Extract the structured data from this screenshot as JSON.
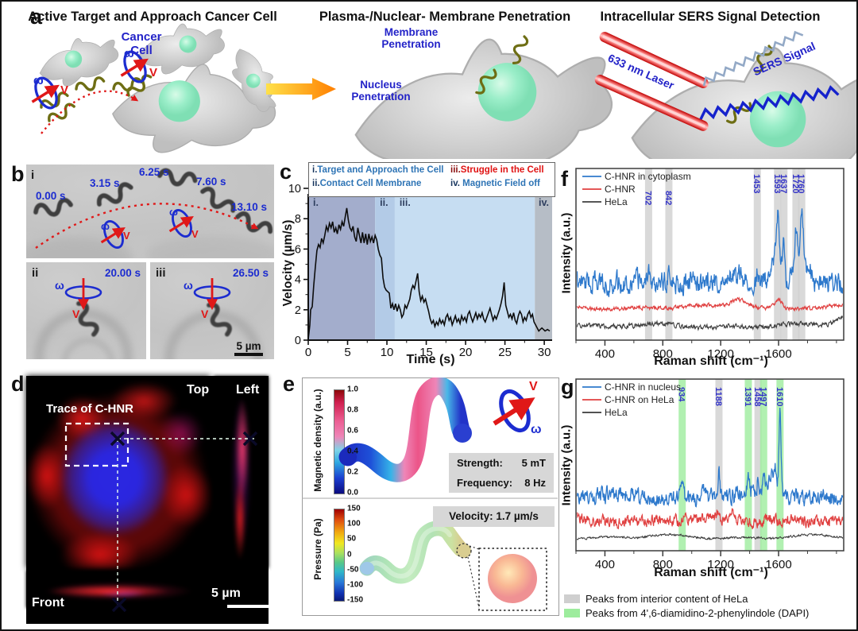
{
  "colors": {
    "accent_blue_text": "#2323c8",
    "curve_blue": "#2e79cc",
    "curve_red": "#e04040",
    "curve_black": "#3f3f3f",
    "band_gray": "#cfcfcf",
    "band_green": "#9dec9d",
    "legend_blue": "#2e74b5",
    "legend_red": "#e01212"
  },
  "panel_a": {
    "label": "a",
    "sections": [
      {
        "title": "Active Target and Approach Cancer Cell"
      },
      {
        "title": "Plasma-/Nuclear- Membrane Penetration"
      },
      {
        "title": "Intracellular SERS Signal Detection"
      }
    ],
    "labels": {
      "cancer_cell": "Cancer Cell",
      "membrane_penetration": "Membrane Penetration",
      "nucleus_penetration": "Nucleus Penetration",
      "laser": "633 nm Laser",
      "sers_signal": "SERS Signal",
      "omega": "ω",
      "v": "V"
    }
  },
  "panel_b": {
    "label": "b",
    "i": {
      "label": "i",
      "timestamps": [
        "0.00 s",
        "3.15 s",
        "6.25 s",
        "7.60 s",
        "13.10 s"
      ]
    },
    "ii": {
      "label": "ii",
      "timestamp": "20.00 s"
    },
    "iii": {
      "label": "iii",
      "timestamp": "26.50 s"
    },
    "scale_bar": "5 µm",
    "omega": "ω",
    "v": "V"
  },
  "panel_c": {
    "label": "c"
  },
  "panel_d": {
    "label": "d",
    "view_top": "Top",
    "view_left": "Left",
    "view_front": "Front",
    "trace": "Trace of C-HNR",
    "scale_bar": "5 µm"
  },
  "panel_e": {
    "label": "e",
    "top": {
      "colorbar_title": "Magnetic density (a.u.)",
      "cbar_ticks": [
        "1.0",
        "0.8",
        "0.6",
        "0.4",
        "0.2",
        "0.0"
      ],
      "omega": "ω",
      "v": "V"
    },
    "params": [
      {
        "k": "Strength:",
        "v": "5 mT"
      },
      {
        "k": "Frequency:",
        "v": "8 Hz"
      }
    ],
    "bottom": {
      "colorbar_title": "Pressure (Pa)",
      "cbar_ticks": [
        "150",
        "100",
        "50",
        "0",
        "-50",
        "-100",
        "-150"
      ],
      "velocity_label": "Velocity: 1.7 µm/s"
    }
  },
  "panel_f": {
    "label": "f"
  },
  "panel_g": {
    "label": "g",
    "bottom_legend": [
      {
        "color": "#cfcfcf",
        "text": "Peaks from interior content of HeLa"
      },
      {
        "color": "#9dec9d",
        "text": "Peaks from 4',6-diamidino-2-phenylindole (DAPI)"
      }
    ]
  },
  "chart_data": [
    {
      "id": "velocity",
      "type": "line",
      "title": "",
      "xlabel": "Time (s)",
      "ylabel": "Velocity (µm/s)",
      "x_ticks": [
        0,
        5,
        10,
        15,
        20,
        25,
        30
      ],
      "y_ticks": [
        0,
        2,
        4,
        6,
        8,
        10
      ],
      "x_range": [
        0,
        31
      ],
      "y_range": [
        0,
        10
      ],
      "regions": [
        {
          "label": "i.",
          "start": 0,
          "end": 8.5,
          "color": "#a3adcc"
        },
        {
          "label": "ii.",
          "start": 8.5,
          "end": 11.0,
          "color": "#b3cbe7"
        },
        {
          "label": "iii.",
          "start": 11.0,
          "end": 28.8,
          "color": "#c6ddf2"
        },
        {
          "label": "iv.",
          "start": 28.8,
          "end": 31.0,
          "color": "#b6bdc6"
        }
      ],
      "legend": [
        {
          "prefix": "i.",
          "text": "Target and Approach the Cell",
          "prefix_color": "#17355e",
          "color": "#2e74b5"
        },
        {
          "prefix": "ii.",
          "text": "Contact Cell Membrane",
          "prefix_color": "#17355e",
          "color": "#2e74b5"
        },
        {
          "prefix": "iii.",
          "text": "Struggle in the Cell",
          "prefix_color": "#8a0f0f",
          "color": "#e01212"
        },
        {
          "prefix": "iv.",
          "text": " Magnetic Field off",
          "prefix_color": "#17355e",
          "color": "#2e74b5"
        }
      ],
      "points": [
        [
          0,
          0.05
        ],
        [
          0.2,
          1.0
        ],
        [
          0.3,
          2.0
        ],
        [
          0.5,
          2.2
        ],
        [
          0.7,
          3.6
        ],
        [
          0.9,
          4.8
        ],
        [
          1.1,
          5.9
        ],
        [
          1.3,
          6.3
        ],
        [
          1.5,
          6.1
        ],
        [
          1.7,
          6.7
        ],
        [
          1.9,
          6.4
        ],
        [
          2.1,
          6.9
        ],
        [
          2.3,
          7.5
        ],
        [
          2.5,
          7.2
        ],
        [
          2.7,
          7.7
        ],
        [
          2.9,
          7.4
        ],
        [
          3.1,
          7.8
        ],
        [
          3.3,
          7.1
        ],
        [
          3.5,
          7.4
        ],
        [
          3.7,
          7.0
        ],
        [
          3.9,
          7.6
        ],
        [
          4.1,
          7.3
        ],
        [
          4.3,
          7.8
        ],
        [
          4.5,
          7.5
        ],
        [
          4.7,
          8.1
        ],
        [
          4.9,
          8.7
        ],
        [
          5.1,
          7.9
        ],
        [
          5.3,
          7.4
        ],
        [
          5.5,
          7.2
        ],
        [
          5.7,
          7.5
        ],
        [
          5.9,
          6.8
        ],
        [
          6.1,
          6.5
        ],
        [
          6.3,
          7.4
        ],
        [
          6.5,
          6.9
        ],
        [
          6.7,
          6.4
        ],
        [
          6.9,
          7.1
        ],
        [
          7.1,
          6.4
        ],
        [
          7.3,
          7.0
        ],
        [
          7.5,
          6.3
        ],
        [
          7.7,
          7.0
        ],
        [
          7.9,
          6.5
        ],
        [
          8.1,
          6.8
        ],
        [
          8.3,
          6.4
        ],
        [
          8.5,
          6.9
        ],
        [
          8.7,
          6.6
        ],
        [
          8.9,
          6.0
        ],
        [
          9.1,
          5.6
        ],
        [
          9.3,
          5.4
        ],
        [
          9.5,
          4.1
        ],
        [
          9.7,
          3.5
        ],
        [
          9.9,
          3.3
        ],
        [
          10.1,
          3.2
        ],
        [
          10.3,
          3.1
        ],
        [
          10.5,
          2.1
        ],
        [
          10.7,
          2.4
        ],
        [
          10.9,
          2.0
        ],
        [
          11.1,
          2.4
        ],
        [
          11.3,
          1.9
        ],
        [
          11.5,
          2.3
        ],
        [
          11.7,
          2.0
        ],
        [
          11.9,
          1.5
        ],
        [
          12.1,
          1.7
        ],
        [
          12.3,
          2.3
        ],
        [
          12.5,
          2.1
        ],
        [
          12.7,
          2.4
        ],
        [
          12.9,
          2.7
        ],
        [
          13.1,
          3.3
        ],
        [
          13.3,
          3.6
        ],
        [
          13.5,
          3.4
        ],
        [
          13.7,
          3.9
        ],
        [
          13.9,
          4.4
        ],
        [
          14.1,
          3.2
        ],
        [
          14.3,
          2.6
        ],
        [
          14.5,
          2.9
        ],
        [
          14.7,
          2.5
        ],
        [
          14.9,
          2.7
        ],
        [
          15.1,
          2.3
        ],
        [
          15.3,
          1.9
        ],
        [
          15.5,
          1.4
        ],
        [
          15.7,
          1.1
        ],
        [
          15.9,
          1.3
        ],
        [
          16.1,
          0.9
        ],
        [
          16.3,
          1.2
        ],
        [
          16.5,
          1.0
        ],
        [
          16.7,
          1.4
        ],
        [
          16.9,
          1.1
        ],
        [
          17.1,
          1.3
        ],
        [
          17.3,
          1.0
        ],
        [
          17.5,
          1.5
        ],
        [
          17.7,
          1.7
        ],
        [
          17.9,
          1.3
        ],
        [
          18.1,
          1.5
        ],
        [
          18.3,
          1.0
        ],
        [
          18.5,
          1.3
        ],
        [
          18.7,
          1.6
        ],
        [
          18.9,
          1.2
        ],
        [
          19.1,
          1.4
        ],
        [
          19.3,
          1.1
        ],
        [
          19.5,
          1.6
        ],
        [
          19.7,
          1.3
        ],
        [
          19.9,
          1.5
        ],
        [
          20.1,
          1.2
        ],
        [
          20.3,
          1.7
        ],
        [
          20.5,
          1.9
        ],
        [
          20.7,
          1.5
        ],
        [
          20.9,
          1.2
        ],
        [
          21.1,
          1.5
        ],
        [
          21.3,
          1.8
        ],
        [
          21.5,
          1.4
        ],
        [
          21.7,
          1.7
        ],
        [
          21.9,
          1.5
        ],
        [
          22.1,
          1.8
        ],
        [
          22.3,
          1.4
        ],
        [
          22.5,
          1.2
        ],
        [
          22.7,
          1.5
        ],
        [
          22.9,
          1.8
        ],
        [
          23.1,
          2.1
        ],
        [
          23.3,
          1.7
        ],
        [
          23.5,
          1.3
        ],
        [
          23.7,
          1.6
        ],
        [
          23.9,
          1.4
        ],
        [
          24.1,
          1.7
        ],
        [
          24.3,
          2.0
        ],
        [
          24.5,
          2.4
        ],
        [
          24.7,
          2.9
        ],
        [
          24.9,
          3.8
        ],
        [
          25.1,
          2.3
        ],
        [
          25.3,
          1.9
        ],
        [
          25.5,
          1.5
        ],
        [
          25.7,
          1.7
        ],
        [
          25.9,
          1.4
        ],
        [
          26.1,
          1.8
        ],
        [
          26.3,
          1.3
        ],
        [
          26.5,
          1.1
        ],
        [
          26.7,
          1.6
        ],
        [
          26.9,
          1.9
        ],
        [
          27.1,
          1.7
        ],
        [
          27.3,
          1.2
        ],
        [
          27.5,
          1.5
        ],
        [
          27.7,
          1.3
        ],
        [
          27.9,
          1.7
        ],
        [
          28.1,
          1.9
        ],
        [
          28.3,
          1.5
        ],
        [
          28.5,
          1.7
        ],
        [
          28.7,
          1.2
        ],
        [
          28.9,
          1.0
        ],
        [
          29.1,
          0.8
        ],
        [
          29.3,
          0.6
        ],
        [
          29.5,
          0.7
        ],
        [
          29.7,
          0.8
        ],
        [
          29.9,
          0.7
        ],
        [
          30.1,
          0.6
        ],
        [
          30.4,
          0.7
        ],
        [
          30.7,
          0.6
        ]
      ]
    },
    {
      "id": "raman_f",
      "type": "line",
      "xlabel": "Raman shift (cm⁻¹)",
      "ylabel": "Intensity (a.u.)",
      "x_ticks": [
        400,
        800,
        1200,
        1600
      ],
      "x_range": [
        200,
        2050
      ],
      "band_label_color": "#3535c8",
      "bands": [
        {
          "x": 702,
          "color": "#cfcfcf",
          "label_dy": 28
        },
        {
          "x": 842,
          "color": "#cfcfcf",
          "label_dy": 28
        },
        {
          "x": 1453,
          "color": "#cfcfcf",
          "label_dy": 7
        },
        {
          "x": 1593,
          "color": "#cfcfcf",
          "label_dy": 7
        },
        {
          "x": 1637,
          "color": "#cfcfcf",
          "label_dy": 7
        },
        {
          "x": 1720,
          "color": "#cfcfcf",
          "label_dy": 7
        },
        {
          "x": 1760,
          "color": "#cfcfcf",
          "label_dy": 7
        }
      ],
      "series": [
        {
          "name": "C-HNR in cytoplasm",
          "color": "#2e79cc",
          "width": 1.3,
          "baseline": 0.665,
          "noise": 0.1,
          "seed": 7,
          "peaks": [
            {
              "c": 702,
              "h": 0.09,
              "s": 6
            },
            {
              "c": 842,
              "h": 0.09,
              "s": 7
            },
            {
              "c": 1004,
              "h": 0.035,
              "s": 12
            },
            {
              "c": 1302,
              "h": 0.06,
              "s": 38
            },
            {
              "c": 1453,
              "h": 0.065,
              "s": 7
            },
            {
              "c": 1560,
              "h": 0.09,
              "s": 26
            },
            {
              "c": 1593,
              "h": 0.36,
              "s": 11
            },
            {
              "c": 1637,
              "h": 0.21,
              "s": 9
            },
            {
              "c": 1684,
              "h": 0.06,
              "s": 10
            },
            {
              "c": 1720,
              "h": 0.27,
              "s": 10
            },
            {
              "c": 1760,
              "h": 0.45,
              "s": 12
            },
            {
              "c": 1806,
              "h": 0.1,
              "s": 22
            }
          ]
        },
        {
          "name": "C-HNR",
          "color": "#e04040",
          "width": 1.2,
          "baseline": 0.81,
          "noise": 0.018,
          "seed": 11,
          "peaks": [
            {
              "c": 1330,
              "h": 0.05,
              "s": 60
            },
            {
              "c": 1598,
              "h": 0.05,
              "s": 22
            }
          ]
        },
        {
          "name": "HeLa",
          "color": "#3f3f3f",
          "width": 1.1,
          "baseline": 0.917,
          "noise": 0.022,
          "seed": 13,
          "peaks": [
            {
              "c": 2040,
              "h": 0.06,
              "s": 50
            }
          ]
        }
      ]
    },
    {
      "id": "raman_g",
      "type": "line",
      "xlabel": "Raman shift (cm⁻¹)",
      "ylabel": "Intensity (a.u.)",
      "x_ticks": [
        400,
        800,
        1200,
        1600
      ],
      "x_range": [
        200,
        2050
      ],
      "band_label_color": "#3535c8",
      "bands": [
        {
          "x": 934,
          "color": "#9dec9d",
          "label_dy": 10
        },
        {
          "x": 1188,
          "color": "#cfcfcf",
          "label_dy": 10
        },
        {
          "x": 1391,
          "color": "#9dec9d",
          "label_dy": 10
        },
        {
          "x": 1458,
          "color": "#cfcfcf",
          "label_dy": 10
        },
        {
          "x": 1497,
          "color": "#9dec9d",
          "label_dy": 10
        },
        {
          "x": 1610,
          "color": "#9dec9d",
          "label_dy": 10
        }
      ],
      "series": [
        {
          "name": "C-HNR in nucleus",
          "color": "#2e79cc",
          "width": 1.3,
          "baseline": 0.685,
          "noise": 0.08,
          "seed": 21,
          "peaks": [
            {
              "c": 934,
              "h": 0.07,
              "s": 6
            },
            {
              "c": 1090,
              "h": 0.05,
              "s": 9
            },
            {
              "c": 1188,
              "h": 0.15,
              "s": 6
            },
            {
              "c": 1320,
              "h": 0.04,
              "s": 10
            },
            {
              "c": 1391,
              "h": 0.14,
              "s": 7
            },
            {
              "c": 1424,
              "h": 0.05,
              "s": 8
            },
            {
              "c": 1458,
              "h": 0.11,
              "s": 6
            },
            {
              "c": 1497,
              "h": 0.09,
              "s": 7
            },
            {
              "c": 1545,
              "h": 0.12,
              "s": 18
            },
            {
              "c": 1580,
              "h": 0.15,
              "s": 10
            },
            {
              "c": 1610,
              "h": 0.52,
              "s": 7
            }
          ]
        },
        {
          "name": "C-HNR on HeLa",
          "color": "#e04040",
          "width": 1.2,
          "baseline": 0.824,
          "noise": 0.055,
          "seed": 23,
          "peaks": [
            {
              "c": 958,
              "h": 0.03,
              "s": 10
            },
            {
              "c": 1175,
              "h": 0.035,
              "s": 9
            },
            {
              "c": 1282,
              "h": 0.06,
              "s": 11
            },
            {
              "c": 1520,
              "h": 0.02,
              "s": 15
            }
          ]
        },
        {
          "name": "HeLa",
          "color": "#3a3a3a",
          "width": 1.0,
          "baseline": 0.92,
          "noise": 0.01,
          "seed": 25,
          "peaks": []
        }
      ]
    }
  ]
}
